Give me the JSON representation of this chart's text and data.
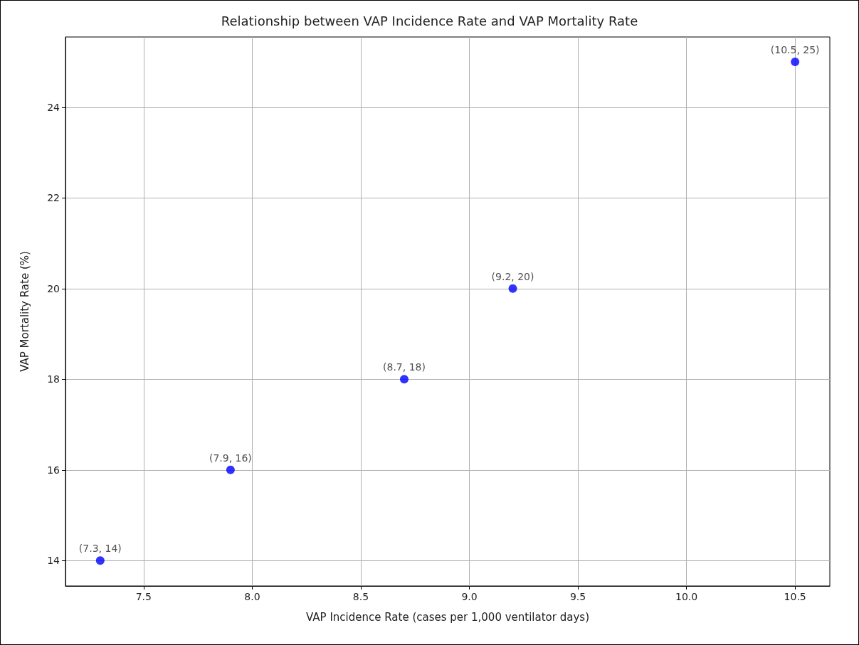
{
  "chart_data": {
    "type": "scatter",
    "title": "Relationship between VAP Incidence Rate and VAP Mortality Rate",
    "xlabel": "VAP Incidence Rate (cases per 1,000 ventilator days)",
    "ylabel": "VAP Mortality Rate (%)",
    "x": [
      7.3,
      7.9,
      8.7,
      9.2,
      10.5
    ],
    "series": [
      {
        "color": "#0000ff",
        "values": [
          14,
          16,
          18,
          20,
          25
        ],
        "value_labels": [
          "(7.3, 14)",
          "(7.9, 16)",
          "(8.7, 18)",
          "(9.2, 20)",
          "(10.5, 25)"
        ]
      }
    ],
    "xlim": [
      7.14,
      10.66
    ],
    "ylim": [
      13.44,
      25.55
    ],
    "xticks": [
      {
        "value": 7.5,
        "label": "7.5"
      },
      {
        "value": 8,
        "label": "8.0"
      },
      {
        "value": 8.5,
        "label": "8.5"
      },
      {
        "value": 9,
        "label": "9.0"
      },
      {
        "value": 9.5,
        "label": "9.5"
      },
      {
        "value": 10,
        "label": "10.0"
      },
      {
        "value": 10.5,
        "label": "10.5"
      }
    ],
    "yticks": [
      14,
      16,
      18,
      20,
      22,
      24
    ],
    "grid": true,
    "marker": "circle"
  }
}
